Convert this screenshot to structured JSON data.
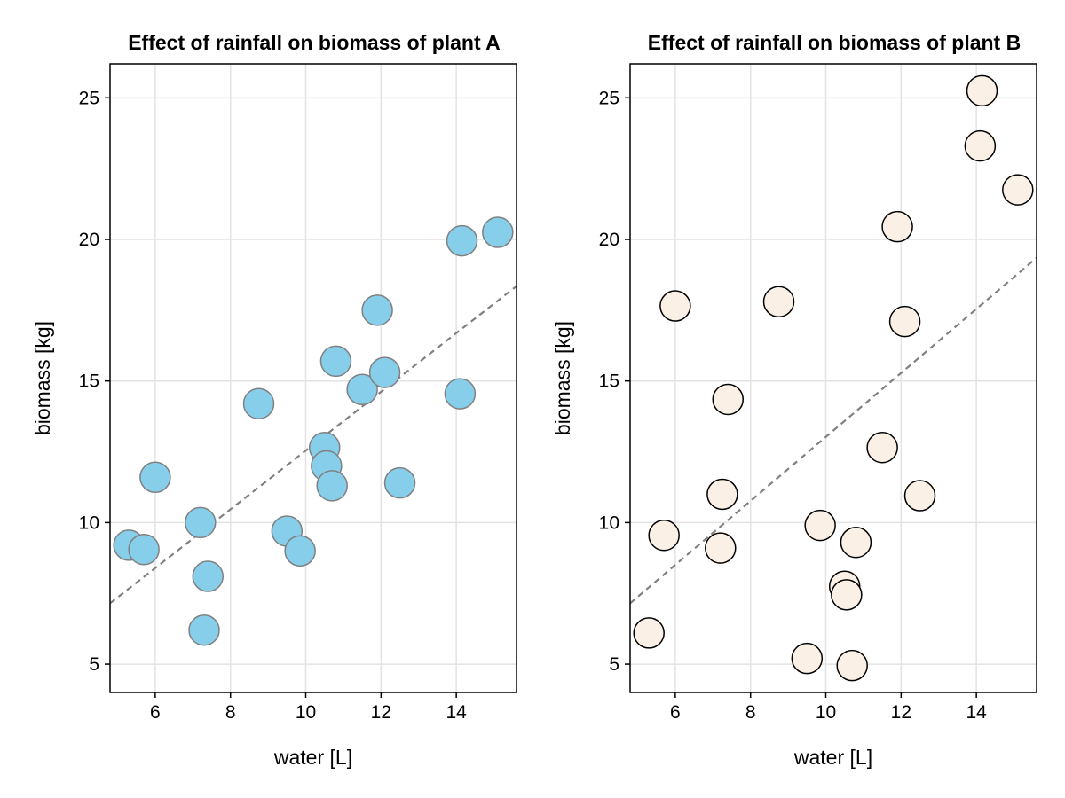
{
  "chart_data": [
    {
      "type": "scatter",
      "title": "Effect of rainfall on biomass of plant A",
      "xlabel": "water [L]",
      "ylabel": "biomass [kg]",
      "xlim": [
        4.8,
        15.6
      ],
      "ylim": [
        4.0,
        26.2
      ],
      "xticks": [
        6,
        8,
        10,
        12,
        14
      ],
      "yticks": [
        5,
        10,
        15,
        20,
        25
      ],
      "grid": true,
      "legend": "none",
      "colors": {
        "fill": "#87ceeb",
        "stroke": "#808080",
        "fit_line": "#808080"
      },
      "fit_line": {
        "x": [
          4.8,
          15.6
        ],
        "y": [
          7.15,
          18.35
        ]
      },
      "series": [
        {
          "x": [
            5.3,
            5.7,
            6.0,
            7.2,
            7.3,
            7.4,
            8.75,
            9.5,
            9.85,
            10.5,
            10.55,
            10.7,
            10.8,
            11.5,
            11.9,
            12.1,
            12.5,
            14.1,
            14.15,
            15.1
          ],
          "y": [
            9.2,
            9.05,
            11.6,
            10.0,
            6.2,
            8.1,
            14.2,
            9.7,
            9.0,
            12.65,
            12.0,
            11.3,
            15.7,
            14.7,
            17.5,
            15.3,
            11.4,
            14.55,
            19.95,
            20.25
          ]
        }
      ]
    },
    {
      "type": "scatter",
      "title": "Effect of rainfall on biomass of plant B",
      "xlabel": "water [L]",
      "ylabel": "biomass [kg]",
      "xlim": [
        4.8,
        15.6
      ],
      "ylim": [
        4.0,
        26.2
      ],
      "xticks": [
        6,
        8,
        10,
        12,
        14
      ],
      "yticks": [
        5,
        10,
        15,
        20,
        25
      ],
      "grid": true,
      "legend": "none",
      "colors": {
        "fill": "#faf0e6",
        "stroke": "#000000",
        "fit_line": "#808080"
      },
      "fit_line": {
        "x": [
          4.8,
          15.6
        ],
        "y": [
          7.15,
          19.35
        ]
      },
      "series": [
        {
          "x": [
            5.3,
            5.7,
            6.0,
            7.2,
            7.25,
            7.4,
            8.75,
            9.5,
            9.85,
            10.5,
            10.55,
            10.7,
            10.8,
            11.5,
            11.9,
            12.1,
            12.5,
            14.1,
            14.15,
            15.1
          ],
          "y": [
            6.1,
            9.55,
            17.65,
            9.1,
            11.0,
            14.35,
            17.8,
            5.2,
            9.9,
            7.75,
            7.45,
            4.95,
            9.3,
            12.65,
            20.45,
            17.1,
            10.95,
            23.3,
            25.25,
            21.75
          ]
        }
      ]
    }
  ]
}
